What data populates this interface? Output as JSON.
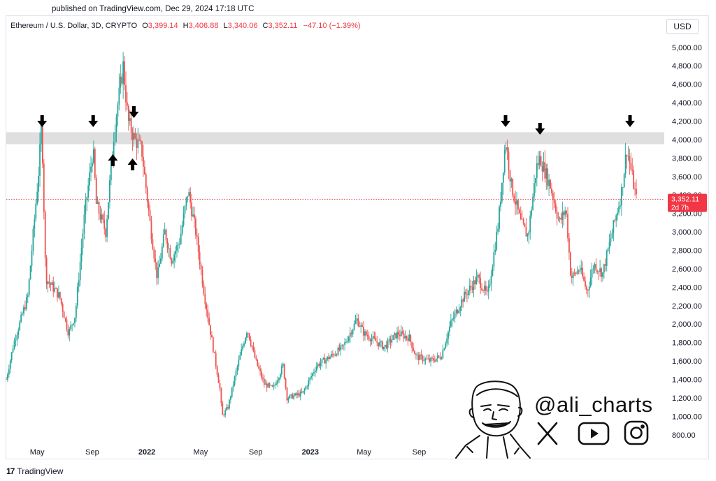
{
  "header": {
    "published": "published on TradingView.com, Dec 29, 2024 17:18 UTC"
  },
  "legend": {
    "symbol": "Ethereum / U.S. Dollar, 3D, CRYPTO",
    "o_label": "O",
    "o_value": "3,399.14",
    "h_label": "H",
    "h_value": "3,406.88",
    "l_label": "L",
    "l_value": "3,340.06",
    "c_label": "C",
    "c_value": "3,352.11",
    "change": "−47.10 (−1.39%)"
  },
  "currency": "USD",
  "price_tag": {
    "price": "3,352.11",
    "countdown": "2d 7h"
  },
  "footer": {
    "brand": "TradingView"
  },
  "watermark": {
    "handle": "@ali_charts",
    "icons": [
      "x-icon",
      "youtube-icon",
      "instagram-icon"
    ]
  },
  "colors": {
    "up": "#26a69a",
    "down": "#ef5350",
    "zone": "#d9d9d9",
    "last_price": "#f23645"
  },
  "chart_data": {
    "type": "candlestick",
    "title": "Ethereum / U.S. Dollar, 3D, CRYPTO",
    "ylim": [
      700,
      5150
    ],
    "y_ticks": [
      800,
      1000,
      1200,
      1400,
      1600,
      1800,
      2000,
      2200,
      2400,
      2600,
      2800,
      3000,
      3200,
      3400,
      3600,
      3800,
      4000,
      4200,
      4400,
      4600,
      4800,
      5000
    ],
    "y_tick_labels": [
      "800.00",
      "1,000.00",
      "1,200.00",
      "1,400.00",
      "1,600.00",
      "1,800.00",
      "2,000.00",
      "2,200.00",
      "2,400.00",
      "2,600.00",
      "2,800.00",
      "3,000.00",
      "3,200.00",
      "3,400.00",
      "3,600.00",
      "3,800.00",
      "4,000.00",
      "4,200.00",
      "4,400.00",
      "4,600.00",
      "4,800.00",
      "5,000.00"
    ],
    "x_ticks": [
      "May",
      "Sep",
      "2022",
      "May",
      "Sep",
      "2023",
      "May",
      "Sep"
    ],
    "x_tick_dates": [
      "2021-05-01",
      "2021-09-01",
      "2022-01-01",
      "2022-05-01",
      "2022-09-01",
      "2023-01-01",
      "2023-05-01",
      "2023-09-01"
    ],
    "x_range": [
      "2021-02-21",
      "2024-12-29"
    ],
    "price_path": [
      {
        "date": "2021-02-21",
        "price": 1400
      },
      {
        "date": "2021-03-10",
        "price": 1800
      },
      {
        "date": "2021-04-10",
        "price": 2300
      },
      {
        "date": "2021-05-05",
        "price": 3700
      },
      {
        "date": "2021-05-11",
        "price": 4200
      },
      {
        "date": "2021-05-20",
        "price": 2500
      },
      {
        "date": "2021-06-20",
        "price": 2300
      },
      {
        "date": "2021-07-10",
        "price": 1900
      },
      {
        "date": "2021-07-25",
        "price": 2100
      },
      {
        "date": "2021-08-15",
        "price": 3200
      },
      {
        "date": "2021-09-03",
        "price": 3900
      },
      {
        "date": "2021-09-10",
        "price": 3300
      },
      {
        "date": "2021-10-01",
        "price": 3000
      },
      {
        "date": "2021-10-20",
        "price": 4100
      },
      {
        "date": "2021-11-09",
        "price": 4800
      },
      {
        "date": "2021-11-20",
        "price": 4200
      },
      {
        "date": "2021-12-05",
        "price": 4000
      },
      {
        "date": "2021-12-20",
        "price": 3900
      },
      {
        "date": "2022-01-08",
        "price": 3100
      },
      {
        "date": "2022-01-24",
        "price": 2500
      },
      {
        "date": "2022-02-10",
        "price": 3000
      },
      {
        "date": "2022-02-25",
        "price": 2700
      },
      {
        "date": "2022-03-15",
        "price": 2900
      },
      {
        "date": "2022-04-03",
        "price": 3450
      },
      {
        "date": "2022-04-20",
        "price": 3000
      },
      {
        "date": "2022-05-10",
        "price": 2300
      },
      {
        "date": "2022-05-20",
        "price": 2000
      },
      {
        "date": "2022-06-13",
        "price": 1300
      },
      {
        "date": "2022-06-18",
        "price": 1000
      },
      {
        "date": "2022-07-01",
        "price": 1100
      },
      {
        "date": "2022-07-20",
        "price": 1500
      },
      {
        "date": "2022-08-13",
        "price": 1950
      },
      {
        "date": "2022-09-01",
        "price": 1600
      },
      {
        "date": "2022-09-20",
        "price": 1350
      },
      {
        "date": "2022-10-10",
        "price": 1300
      },
      {
        "date": "2022-11-01",
        "price": 1550
      },
      {
        "date": "2022-11-10",
        "price": 1200
      },
      {
        "date": "2022-12-15",
        "price": 1250
      },
      {
        "date": "2023-01-15",
        "price": 1550
      },
      {
        "date": "2023-02-15",
        "price": 1650
      },
      {
        "date": "2023-03-15",
        "price": 1750
      },
      {
        "date": "2023-04-15",
        "price": 2050
      },
      {
        "date": "2023-05-01",
        "price": 1900
      },
      {
        "date": "2023-06-15",
        "price": 1750
      },
      {
        "date": "2023-07-15",
        "price": 1900
      },
      {
        "date": "2023-08-10",
        "price": 1850
      },
      {
        "date": "2023-08-25",
        "price": 1650
      },
      {
        "date": "2023-09-25",
        "price": 1600
      },
      {
        "date": "2023-10-20",
        "price": 1650
      },
      {
        "date": "2023-11-10",
        "price": 2000
      },
      {
        "date": "2023-12-10",
        "price": 2300
      },
      {
        "date": "2024-01-10",
        "price": 2500
      },
      {
        "date": "2024-02-01",
        "price": 2300
      },
      {
        "date": "2024-02-25",
        "price": 3100
      },
      {
        "date": "2024-03-12",
        "price": 4000
      },
      {
        "date": "2024-03-25",
        "price": 3500
      },
      {
        "date": "2024-04-15",
        "price": 3100
      },
      {
        "date": "2024-05-01",
        "price": 2950
      },
      {
        "date": "2024-05-20",
        "price": 3700
      },
      {
        "date": "2024-05-28",
        "price": 3800
      },
      {
        "date": "2024-06-20",
        "price": 3500
      },
      {
        "date": "2024-07-10",
        "price": 3100
      },
      {
        "date": "2024-07-25",
        "price": 3250
      },
      {
        "date": "2024-08-05",
        "price": 2500
      },
      {
        "date": "2024-08-25",
        "price": 2600
      },
      {
        "date": "2024-09-10",
        "price": 2350
      },
      {
        "date": "2024-09-25",
        "price": 2650
      },
      {
        "date": "2024-10-15",
        "price": 2550
      },
      {
        "date": "2024-11-10",
        "price": 3100
      },
      {
        "date": "2024-11-25",
        "price": 3400
      },
      {
        "date": "2024-12-08",
        "price": 3900
      },
      {
        "date": "2024-12-18",
        "price": 3650
      },
      {
        "date": "2024-12-29",
        "price": 3352.11
      }
    ],
    "resistance_zone": [
      3950,
      4080
    ],
    "last_price": 3352.11,
    "arrows_down": [
      "2021-05-12",
      "2021-09-03",
      "2021-12-03",
      "2024-03-12",
      "2024-05-28",
      "2024-12-15"
    ],
    "arrows_up": [
      "2021-10-17",
      "2021-11-30"
    ],
    "grid": false
  }
}
